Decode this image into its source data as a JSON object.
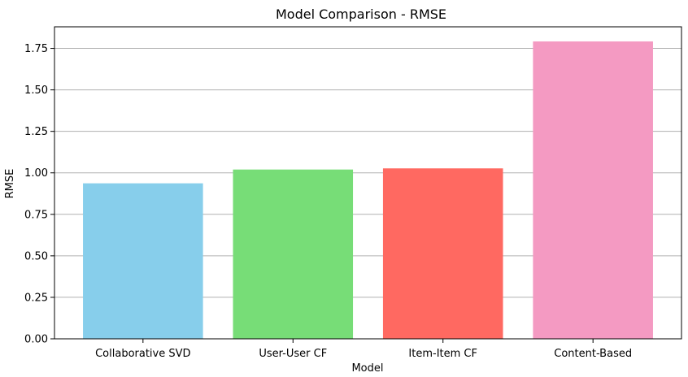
{
  "chart_data": {
    "type": "bar",
    "title": "Model Comparison - RMSE",
    "xlabel": "Model",
    "ylabel": "RMSE",
    "categories": [
      "Collaborative SVD",
      "User-User CF",
      "Item-Item CF",
      "Content-Based"
    ],
    "values": [
      0.937,
      1.02,
      1.027,
      1.792
    ],
    "colors": [
      "#87ceeb",
      "#77dd77",
      "#ff6961",
      "#f49ac2"
    ],
    "ylim": [
      0,
      1.88
    ],
    "yticks": [
      0.0,
      0.25,
      0.5,
      0.75,
      1.0,
      1.25,
      1.5,
      1.75
    ],
    "ytick_labels": [
      "0.00",
      "0.25",
      "0.50",
      "0.75",
      "1.00",
      "1.25",
      "1.50",
      "1.75"
    ],
    "grid": "y-axis",
    "legend": "none"
  }
}
